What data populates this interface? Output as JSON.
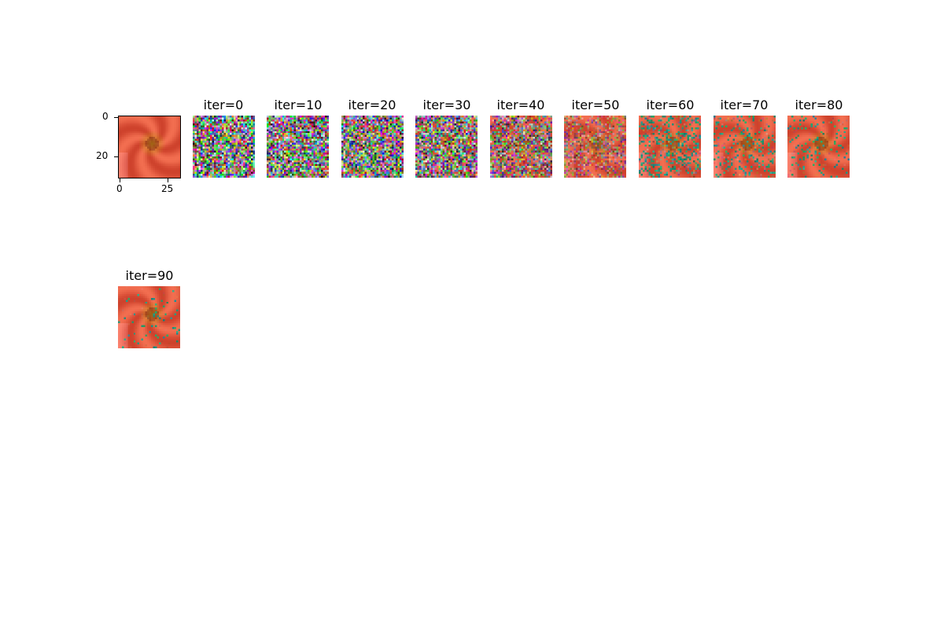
{
  "figure": {
    "original": {
      "x_ticks": [
        "0",
        "25"
      ],
      "y_ticks": [
        "0",
        "20"
      ]
    },
    "panels": [
      {
        "title": "iter=0",
        "denoise": 0.0
      },
      {
        "title": "iter=10",
        "denoise": 0.02
      },
      {
        "title": "iter=20",
        "denoise": 0.04
      },
      {
        "title": "iter=30",
        "denoise": 0.08
      },
      {
        "title": "iter=40",
        "denoise": 0.22
      },
      {
        "title": "iter=50",
        "denoise": 0.45
      },
      {
        "title": "iter=60",
        "denoise": 0.62
      },
      {
        "title": "iter=70",
        "denoise": 0.74
      },
      {
        "title": "iter=80",
        "denoise": 0.84
      },
      {
        "title": "iter=90",
        "denoise": 0.9
      }
    ]
  },
  "colors": {
    "petal": "#e0553a",
    "center": "#d08a1e",
    "background": "#ffffff"
  }
}
